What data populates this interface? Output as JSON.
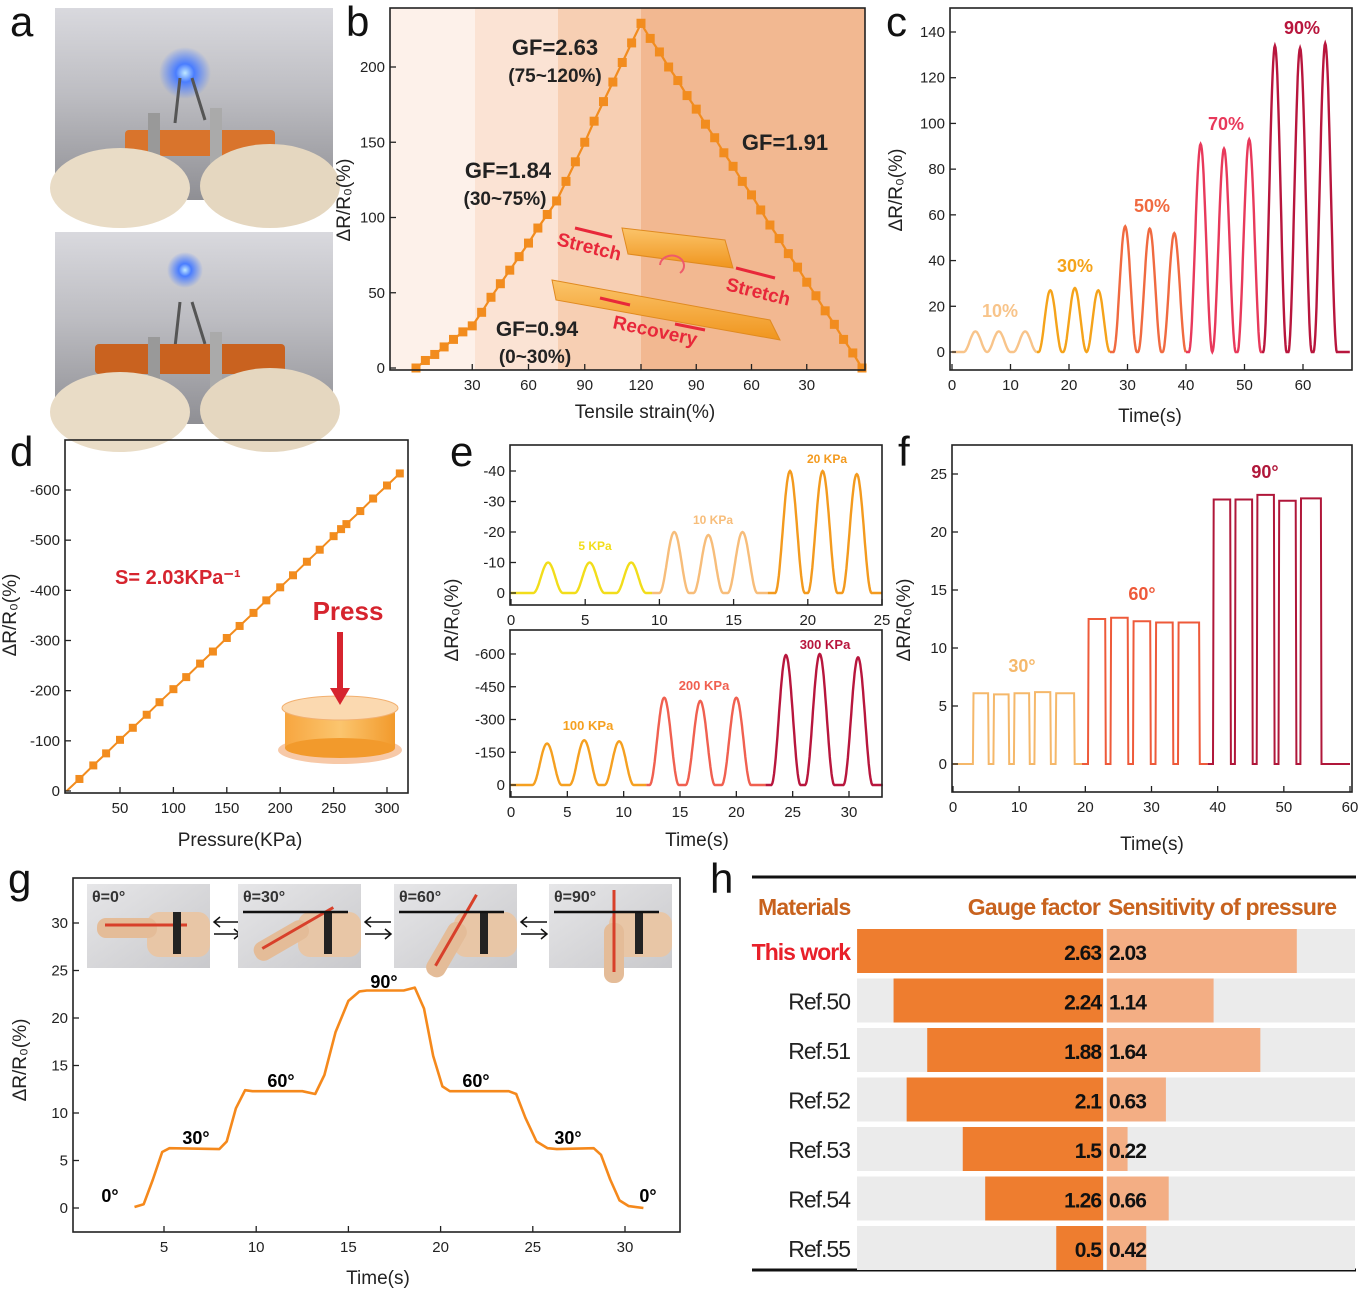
{
  "panel_labels": {
    "a": "a",
    "b": "b",
    "c": "c",
    "d": "d",
    "e": "e",
    "f": "f",
    "g": "g",
    "h": "h"
  },
  "chart_data": [
    {
      "panel": "b",
      "type": "line",
      "xlabel": "Tensile strain(%)",
      "ylabel": "ΔR/R₀(%)",
      "xticks": [
        30,
        60,
        90,
        120,
        90,
        60,
        30
      ],
      "yticks": [
        0,
        50,
        100,
        150,
        200
      ],
      "ylim": [
        0,
        235
      ],
      "line_color": "#f28c1e",
      "series": [
        {
          "x": [
            0,
            5,
            10,
            15,
            20,
            25,
            30,
            35,
            40,
            45,
            50,
            55,
            60,
            65,
            70,
            75,
            80,
            85,
            90,
            95,
            100,
            105,
            110,
            115,
            120
          ],
          "y": [
            0,
            5,
            9,
            14,
            19,
            24,
            28,
            37,
            47,
            56,
            65,
            74,
            83,
            93,
            102,
            111,
            124,
            137,
            150,
            164,
            177,
            190,
            203,
            216,
            229
          ]
        },
        {
          "x": [
            120,
            115,
            110,
            105,
            100,
            95,
            90,
            85,
            80,
            75,
            70,
            65,
            60,
            55,
            50,
            45,
            40,
            35,
            30,
            25,
            20,
            15,
            10,
            5,
            0
          ],
          "y": [
            229,
            219,
            210,
            200,
            191,
            181,
            172,
            162,
            153,
            143,
            134,
            124,
            115,
            105,
            95,
            86,
            76,
            67,
            57,
            48,
            38,
            29,
            19,
            10,
            0
          ]
        }
      ],
      "regions": [
        {
          "range": [
            0,
            30
          ],
          "color": "#fdf1ea"
        },
        {
          "range": [
            30,
            75
          ],
          "color": "#fbe3d4"
        },
        {
          "range": [
            75,
            120
          ],
          "color": "#f7cfb3"
        },
        {
          "range": [
            120,
            0
          ],
          "color": "#f2b891"
        }
      ],
      "annotations": [
        "GF=2.63",
        "(75~120%)",
        "GF=1.84",
        "(30~75%)",
        "GF=0.94",
        "(0~30%)",
        "GF=1.91"
      ],
      "inset_labels": [
        "Stretch",
        "Stretch",
        "Recovery"
      ]
    },
    {
      "panel": "c",
      "type": "line",
      "xlabel": "Time(s)",
      "ylabel": "ΔR/R₀(%)",
      "xticks": [
        0,
        10,
        20,
        30,
        40,
        50,
        60
      ],
      "yticks": [
        0,
        20,
        40,
        60,
        80,
        100,
        120,
        140
      ],
      "xlim": [
        0,
        68
      ],
      "ylim": [
        -8,
        150
      ],
      "series": [
        {
          "label": "10%",
          "color": "#f8c48a",
          "range": [
            0,
            14.5
          ],
          "peaks_t": [
            4,
            8,
            12.5
          ],
          "peaks_y": [
            9,
            9,
            9
          ]
        },
        {
          "label": "30%",
          "color": "#f5a31a",
          "range": [
            14.5,
            27
          ],
          "peaks_t": [
            16.8,
            21,
            25
          ],
          "peaks_y": [
            27,
            28,
            27
          ]
        },
        {
          "label": "50%",
          "color": "#f06a40",
          "range": [
            27,
            40
          ],
          "peaks_t": [
            29.6,
            33.8,
            38
          ],
          "peaks_y": [
            55,
            54,
            52
          ]
        },
        {
          "label": "70%",
          "color": "#e8395b",
          "range": [
            40,
            53
          ],
          "peaks_t": [
            42.5,
            46.5,
            50.8
          ],
          "peaks_y": [
            91,
            89,
            93
          ]
        },
        {
          "label": "90%",
          "color": "#b8163d",
          "range": [
            53,
            68
          ],
          "peaks_t": [
            55.2,
            59.5,
            63.8
          ],
          "peaks_y": [
            134,
            133,
            135
          ]
        }
      ]
    },
    {
      "panel": "d",
      "type": "line",
      "xlabel": "Pressure(KPa)",
      "ylabel": "ΔR/R₀(%)",
      "xticks": [
        50,
        100,
        150,
        200,
        250,
        300
      ],
      "yticks": [
        0,
        -100,
        -200,
        -300,
        -400,
        -500,
        -600
      ],
      "ylim": [
        0,
        -650
      ],
      "line_color": "#f28c1e",
      "x": [
        12,
        25,
        37,
        50,
        62,
        75,
        87,
        100,
        112,
        125,
        137,
        150,
        162,
        175,
        187,
        200,
        212,
        225,
        237,
        250,
        257,
        262,
        275,
        287,
        300,
        312
      ],
      "y": [
        -24,
        -51,
        -75,
        -102,
        -126,
        -152,
        -177,
        -203,
        -227,
        -254,
        -278,
        -305,
        -329,
        -355,
        -380,
        -406,
        -430,
        -457,
        -481,
        -508,
        -522,
        -532,
        -558,
        -583,
        -609,
        -633
      ],
      "annotations": [
        "S= 2.03KPa⁻¹",
        "Press"
      ]
    },
    {
      "panel": "e-top",
      "type": "line",
      "xticks": [
        0,
        5,
        10,
        15,
        20,
        25
      ],
      "yticks": [
        0,
        -10,
        -20,
        -30,
        -40
      ],
      "xlim": [
        0,
        25
      ],
      "ylim": [
        3,
        -48
      ],
      "series": [
        {
          "label": "5 KPa",
          "color": "#f2dd1a",
          "range": [
            0,
            9.5
          ],
          "peaks_t": [
            2.5,
            5.3,
            8.1
          ],
          "peaks_y": [
            -10,
            -10,
            -10
          ]
        },
        {
          "label": "10 KPa",
          "color": "#f7bd7a",
          "range": [
            9.5,
            17.3
          ],
          "peaks_t": [
            11,
            13.3,
            15.6
          ],
          "peaks_y": [
            -20,
            -19,
            -20
          ]
        },
        {
          "label": "20 KPa",
          "color": "#f39a1e",
          "range": [
            17.3,
            25
          ],
          "peaks_t": [
            18.8,
            21,
            23.3
          ],
          "peaks_y": [
            -40,
            -40,
            -39
          ]
        }
      ]
    },
    {
      "panel": "e-bottom",
      "type": "line",
      "xlabel": "Time(s)",
      "ylabel": "ΔR/R₀(%)",
      "xticks": [
        0,
        5,
        10,
        15,
        20,
        25,
        30
      ],
      "yticks": [
        0,
        -150,
        -300,
        -450,
        -600
      ],
      "xlim": [
        0,
        33
      ],
      "ylim": [
        50,
        -700
      ],
      "series": [
        {
          "label": "100 KPa",
          "color": "#f5a020",
          "range": [
            0,
            12
          ],
          "peaks_t": [
            3.2,
            6.5,
            9.6
          ],
          "peaks_y": [
            -190,
            -205,
            -200
          ]
        },
        {
          "label": "200 KPa",
          "color": "#f06050",
          "range": [
            12,
            22.6
          ],
          "peaks_t": [
            13.6,
            16.8,
            20
          ],
          "peaks_y": [
            -400,
            -385,
            -400
          ]
        },
        {
          "label": "300 KPa",
          "color": "#b8163d",
          "range": [
            22.6,
            33
          ],
          "peaks_t": [
            24.4,
            27.4,
            30.8
          ],
          "peaks_y": [
            -595,
            -600,
            -585
          ]
        }
      ]
    },
    {
      "panel": "f",
      "type": "line",
      "xlabel": "Time(s)",
      "ylabel": "ΔR/R₀(%)",
      "xticks": [
        0,
        10,
        20,
        30,
        40,
        50,
        60
      ],
      "yticks": [
        0,
        5,
        10,
        15,
        20,
        25
      ],
      "xlim": [
        0,
        60
      ],
      "ylim": [
        -2.5,
        27
      ],
      "series": [
        {
          "label": "30°",
          "color": "#f5b86a",
          "range": [
            0,
            19.5
          ],
          "pulses": [
            {
              "start": 3,
              "end": 5.4,
              "value": 6.1
            },
            {
              "start": 6.1,
              "end": 8.5,
              "value": 6.0
            },
            {
              "start": 9.2,
              "end": 11.6,
              "value": 6.1
            },
            {
              "start": 12.3,
              "end": 14.8,
              "value": 6.2
            },
            {
              "start": 15.5,
              "end": 18.4,
              "value": 6.1
            }
          ]
        },
        {
          "label": "60°",
          "color": "#ee5a3a",
          "range": [
            19.5,
            38.5
          ],
          "pulses": [
            {
              "start": 20.4,
              "end": 23.1,
              "value": 12.5
            },
            {
              "start": 23.8,
              "end": 26.5,
              "value": 12.6
            },
            {
              "start": 27.2,
              "end": 29.9,
              "value": 12.3
            },
            {
              "start": 30.6,
              "end": 33.3,
              "value": 12.2
            },
            {
              "start": 34,
              "end": 37.3,
              "value": 12.2
            }
          ]
        },
        {
          "label": "90°",
          "color": "#b0173a",
          "range": [
            38.5,
            60
          ],
          "pulses": [
            {
              "start": 39.3,
              "end": 42,
              "value": 22.8
            },
            {
              "start": 42.6,
              "end": 45.3,
              "value": 22.8
            },
            {
              "start": 45.9,
              "end": 48.6,
              "value": 23.2
            },
            {
              "start": 49.2,
              "end": 51.9,
              "value": 22.7
            },
            {
              "start": 52.5,
              "end": 55.7,
              "value": 22.9
            }
          ]
        }
      ]
    },
    {
      "panel": "g",
      "type": "line",
      "xlabel": "Time(s)",
      "ylabel": "ΔR/R₀(%)",
      "xticks": [
        5,
        10,
        15,
        20,
        25,
        30
      ],
      "yticks": [
        0,
        5,
        10,
        15,
        20,
        25,
        30
      ],
      "xlim": [
        0,
        33
      ],
      "ylim": [
        -2.5,
        34
      ],
      "line_color": "#f5891c",
      "x": [
        0,
        3.4,
        3.9,
        4.4,
        4.9,
        5.3,
        8,
        8.4,
        8.9,
        9.4,
        9.8,
        12.5,
        13.2,
        13.7,
        14.3,
        15,
        15.6,
        16,
        18,
        18.6,
        19.1,
        19.6,
        20.1,
        20.5,
        23.7,
        24.1,
        24.6,
        25.2,
        25.8,
        26.3,
        28.3,
        28.7,
        29.2,
        29.7,
        30.2,
        31,
        33
      ],
      "y": [
        0,
        0.1,
        0.4,
        3,
        5.9,
        6.3,
        6.2,
        7,
        10.5,
        12.4,
        12.3,
        12.3,
        12,
        14,
        18.5,
        21.8,
        22.8,
        22.9,
        22.9,
        23.2,
        21,
        16,
        12.8,
        12.3,
        12.3,
        12,
        9.5,
        7,
        6.3,
        6.2,
        6.3,
        5.6,
        3,
        0.8,
        0.2,
        0,
        0
      ],
      "step_labels": [
        "0°",
        "30°",
        "60°",
        "90°",
        "60°",
        "30°",
        "0°"
      ],
      "photo_labels": [
        "θ=0°",
        "θ=30°",
        "θ=60°",
        "θ=90°"
      ]
    },
    {
      "panel": "h",
      "type": "table",
      "headers": [
        "Materials",
        "Gauge factor",
        "Sensitivity of pressure"
      ],
      "rows": [
        {
          "material": "This work",
          "gauge_factor": 2.63,
          "sensitivity": 2.03
        },
        {
          "material": "Ref.50",
          "gauge_factor": 2.24,
          "sensitivity": 1.14
        },
        {
          "material": "Ref.51",
          "gauge_factor": 1.88,
          "sensitivity": 1.64
        },
        {
          "material": "Ref.52",
          "gauge_factor": 2.1,
          "sensitivity": 0.63
        },
        {
          "material": "Ref.53",
          "gauge_factor": 1.5,
          "sensitivity": 0.22
        },
        {
          "material": "Ref.54",
          "gauge_factor": 1.26,
          "sensitivity": 0.66
        },
        {
          "material": "Ref.55",
          "gauge_factor": 0.5,
          "sensitivity": 0.42
        }
      ],
      "colors": {
        "header": "#c8621e",
        "highlight": "#e8202a",
        "gauge_bar": "#ee7d2f",
        "sensitivity_bar": "#f3ae84",
        "row_bg": "#ebebeb"
      }
    }
  ]
}
